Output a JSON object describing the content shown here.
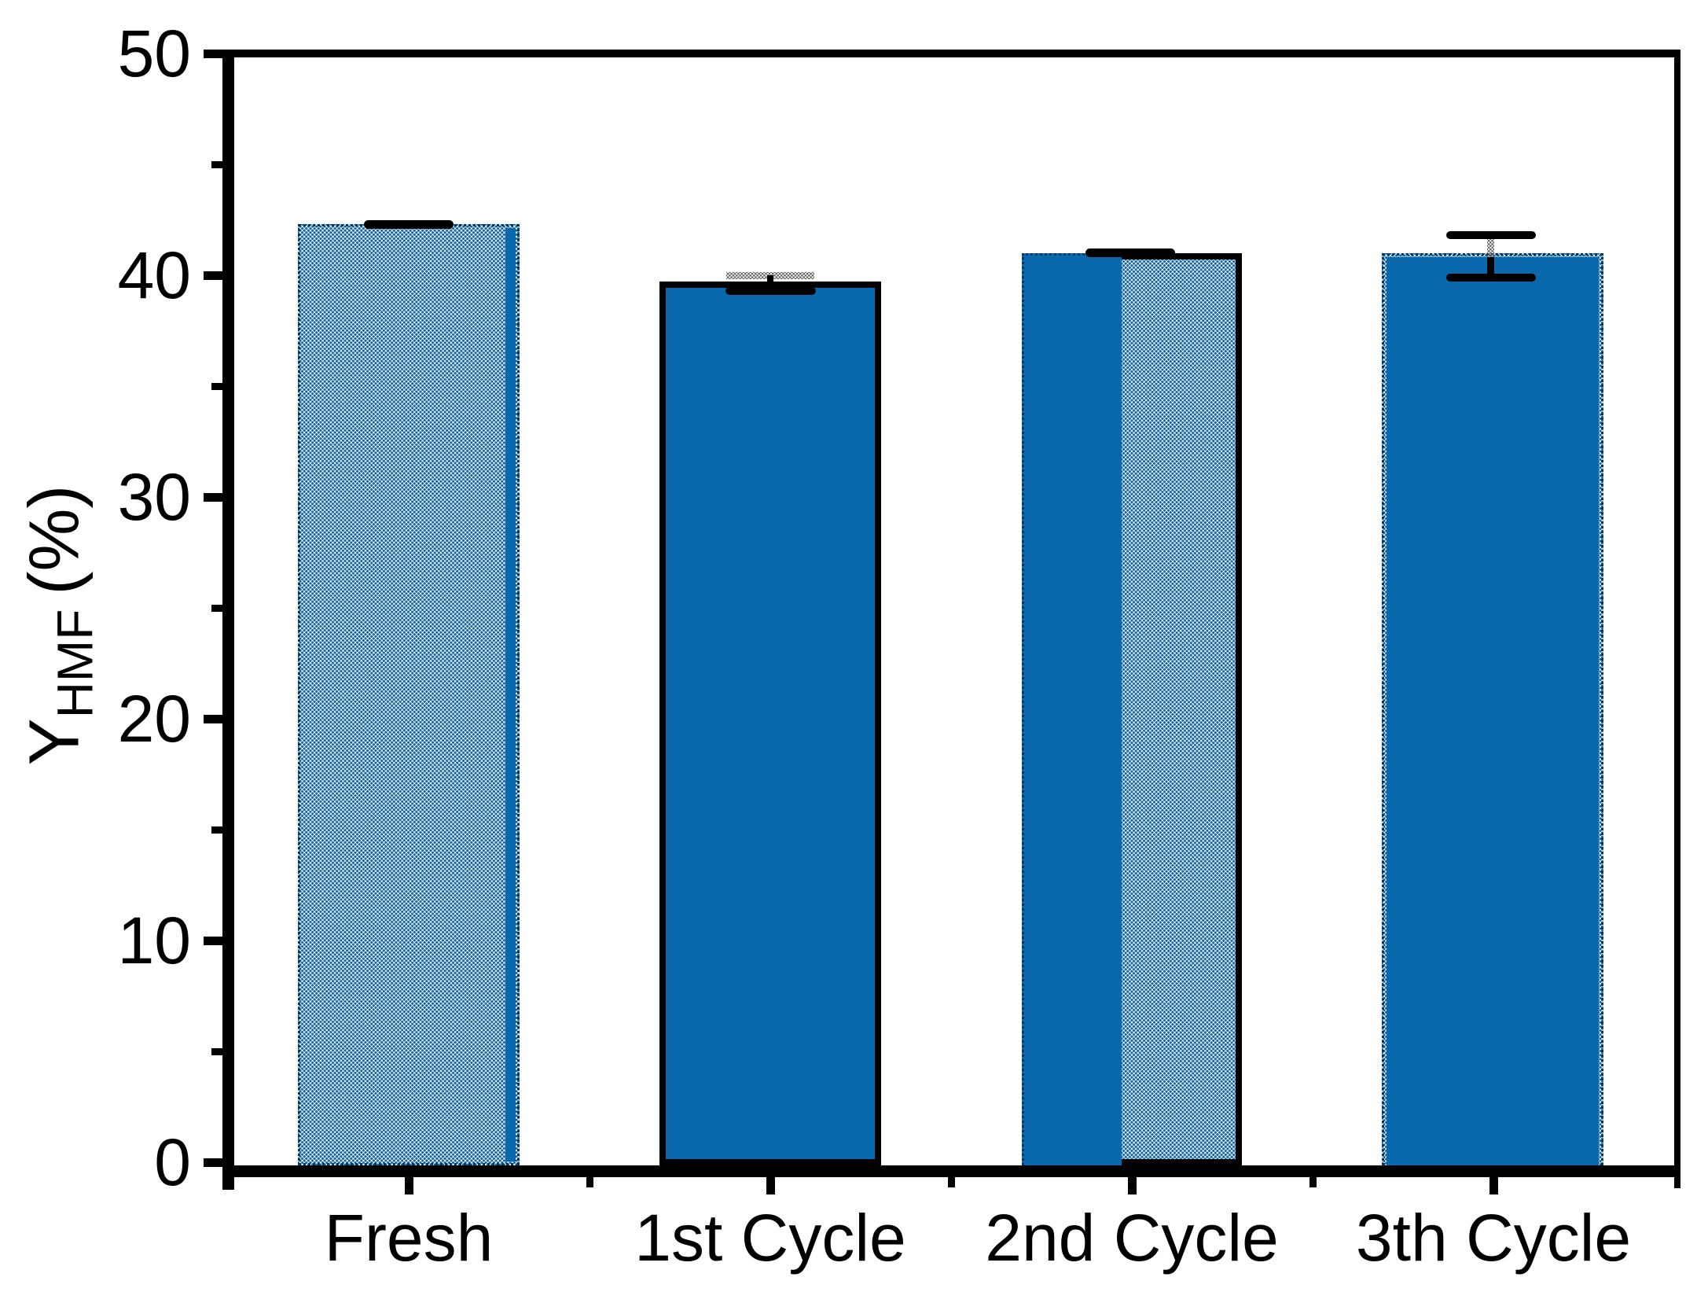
{
  "y_axis_title": {
    "main": "Y",
    "sub": "HMF",
    "unit": "(%)"
  },
  "colors": {
    "solid_blue": "#0A69AC",
    "pattern_blue": "#15669F",
    "axis_black": "#000000",
    "error_gray": "#606060"
  },
  "chart_data": {
    "type": "bar",
    "title": "",
    "xlabel": "",
    "ylabel": "Y_HMF (%)",
    "ylim": [
      0,
      50
    ],
    "y_major_ticks": [
      0,
      10,
      20,
      30,
      40,
      50
    ],
    "y_minor_ticks": [
      5,
      15,
      25,
      35,
      45
    ],
    "grid": false,
    "legend": false,
    "categories": [
      "Fresh",
      "1st Cycle",
      "2nd Cycle",
      "3th Cycle"
    ],
    "series": [
      {
        "name": "patterned-bar",
        "values": [
          42.3,
          39.9,
          41.0,
          41.0
        ]
      },
      {
        "name": "solid-bar",
        "values": [
          42.3,
          39.7,
          41.0,
          40.8
        ]
      }
    ],
    "error_bars": [
      {
        "category": "Fresh",
        "upper": 42.35,
        "lower": 42.25
      },
      {
        "category": "1st Cycle",
        "upper": 40.0,
        "lower": 39.3
      },
      {
        "category": "2nd Cycle",
        "upper": 41.1,
        "lower": 40.95
      },
      {
        "category": "3th Cycle",
        "upper": 41.8,
        "lower": 39.9
      }
    ],
    "bar_render_styles": [
      "pattern-front-solid-sliver",
      "solid-black-outline",
      "solid-left-pattern-right",
      "solid-front-pattern-fringe"
    ]
  }
}
